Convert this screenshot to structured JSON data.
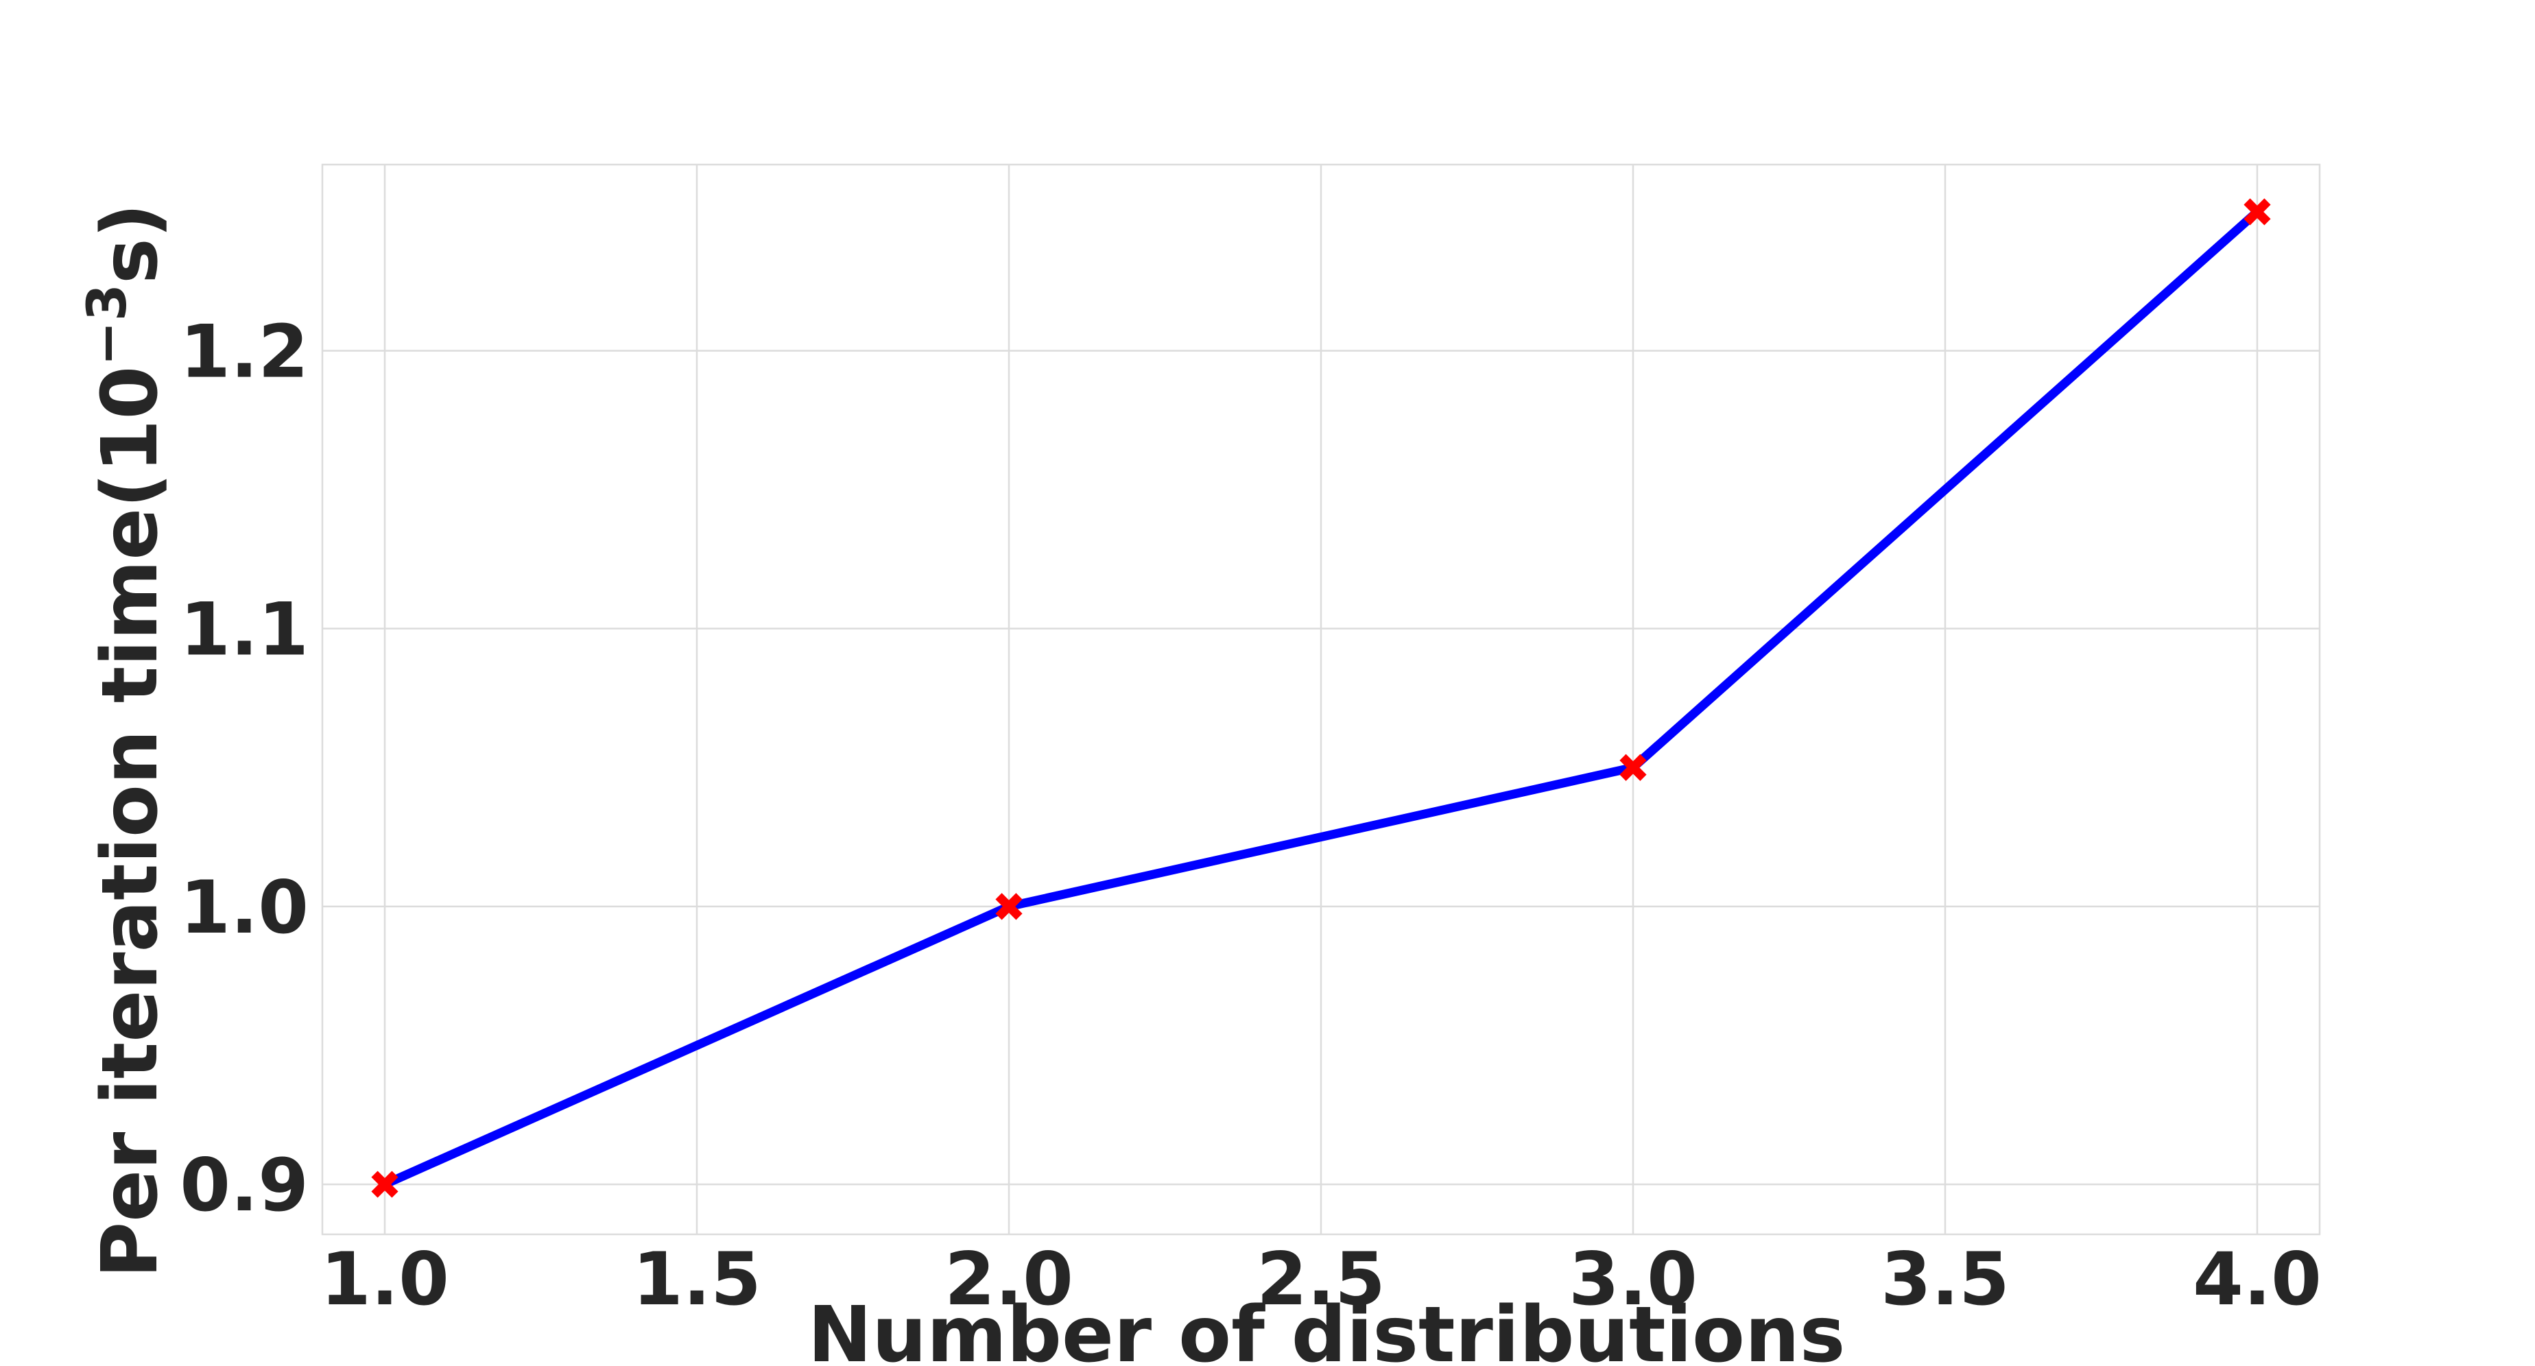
{
  "chart_data": {
    "type": "line",
    "title": "",
    "xlabel": "Number of distributions",
    "ylabel_main": "Per iteration time(10",
    "ylabel_sup": "−3",
    "ylabel_end": "s)",
    "x": [
      1.0,
      2.0,
      3.0,
      4.0
    ],
    "series": [
      {
        "values": [
          0.9,
          1.0,
          1.05,
          1.25
        ]
      }
    ],
    "xlim": [
      0.9,
      4.1
    ],
    "ylim": [
      0.882,
      1.267
    ],
    "xticks": [
      1.0,
      1.5,
      2.0,
      2.5,
      3.0,
      3.5,
      4.0
    ],
    "xtick_labels": [
      "1.0",
      "1.5",
      "2.0",
      "2.5",
      "3.0",
      "3.5",
      "4.0"
    ],
    "yticks": [
      0.9,
      1.0,
      1.1,
      1.2
    ],
    "ytick_labels": [
      "0.9",
      "1.0",
      "1.1",
      "1.2"
    ],
    "grid": true,
    "colors": {
      "line": "#0000ff",
      "marker": "#ff0000",
      "grid": "#dcdcdc",
      "text": "#262626"
    },
    "marker": "x"
  }
}
